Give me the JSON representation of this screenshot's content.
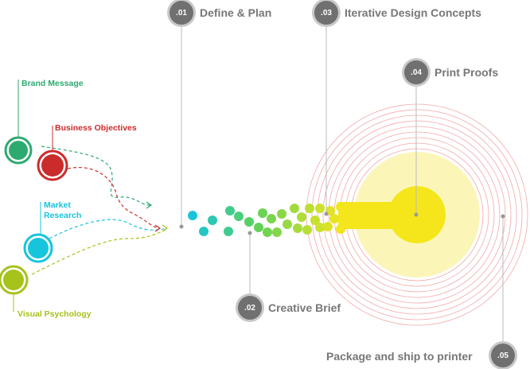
{
  "inputs": {
    "brand_message": {
      "label": "Brand Message",
      "color": "#2daa6f"
    },
    "business_objectives": {
      "label": "Business Objectives",
      "color": "#cc2b2b"
    },
    "market_research": {
      "label": "Market\nResearch",
      "color": "#16c4dc"
    },
    "visual_psychology": {
      "label": "Visual Psychology",
      "color": "#a5c31a"
    }
  },
  "steps": [
    {
      "number": ".01",
      "label": "Define & Plan"
    },
    {
      "number": ".02",
      "label": "Creative Brief"
    },
    {
      "number": ".03",
      "label": "Iterative Design Concepts"
    },
    {
      "number": ".04",
      "label": "Print Proofs"
    },
    {
      "number": ".05",
      "label": "Package and ship to printer"
    }
  ],
  "colors": {
    "badge": "#707070",
    "step_text": "#777777",
    "leader_line": "#bbbbbb",
    "print_core": "#f5e61c",
    "print_glow": "#fbf6b8",
    "ring": "#f2a9a9"
  }
}
